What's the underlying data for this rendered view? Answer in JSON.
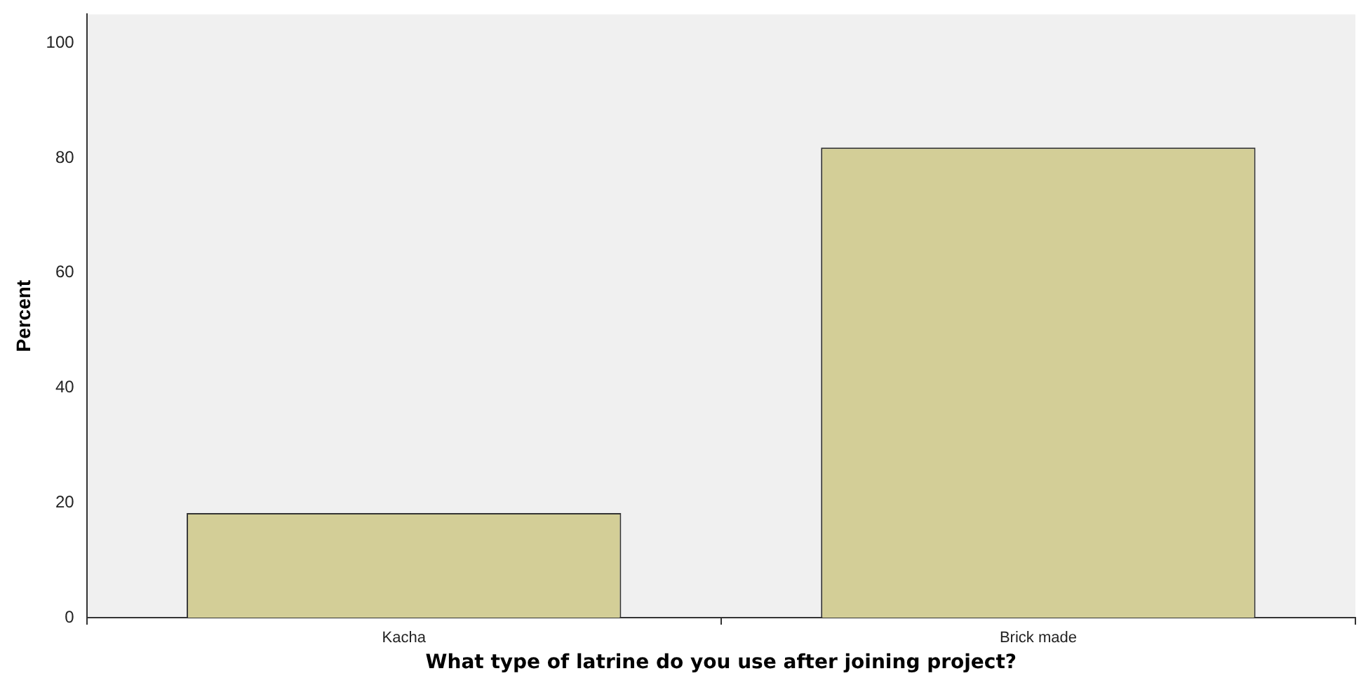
{
  "chart_data": {
    "type": "bar",
    "xlabel": "What type of latrine do you use after joining project?",
    "ylabel": "Percent",
    "categories": [
      "Kacha",
      "Brick made"
    ],
    "values": [
      18.2,
      81.8
    ],
    "color": "#d3ce97",
    "ylim": [
      0,
      105
    ],
    "yticks": [
      0,
      20,
      40,
      60,
      80,
      100
    ],
    "grid": false,
    "legend": false
  }
}
